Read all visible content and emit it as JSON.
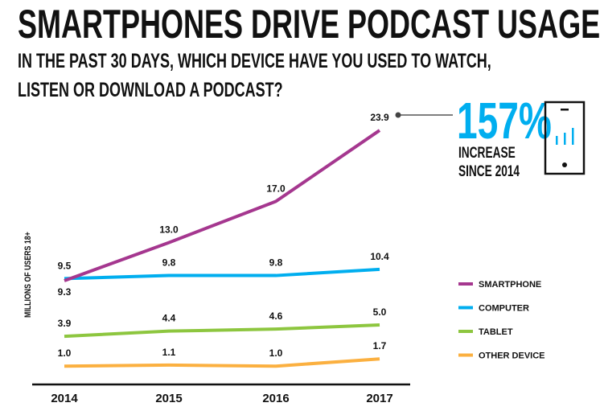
{
  "header": {
    "title": "SMARTPHONES DRIVE PODCAST USAGE",
    "subtitle_line1": "IN THE PAST 30 DAYS, WHICH DEVICE HAVE YOU USED TO WATCH,",
    "subtitle_line2": "LISTEN OR DOWNLOAD A PODCAST?"
  },
  "callout": {
    "value": "157%",
    "line1": "INCREASE",
    "line2": "SINCE 2014",
    "icon": "smartphone-signal-icon",
    "color": "#00aeef"
  },
  "chart_data": {
    "type": "line",
    "categories": [
      "2014",
      "2015",
      "2016",
      "2017"
    ],
    "ylabel": "MILLIONS OF USERS 18+",
    "legend_position": "right",
    "grid": false,
    "series": [
      {
        "name": "SMARTPHONE",
        "color": "#a5378f",
        "values": [
          9.3,
          13.0,
          17.0,
          23.9
        ],
        "labels": [
          "9.3",
          "13.0",
          "17.0",
          "23.9"
        ]
      },
      {
        "name": "COMPUTER",
        "color": "#00aeef",
        "values": [
          9.5,
          9.8,
          9.8,
          10.4
        ],
        "labels": [
          "9.5",
          "9.8",
          "9.8",
          "10.4"
        ]
      },
      {
        "name": "TABLET",
        "color": "#8dc63f",
        "values": [
          3.9,
          4.4,
          4.6,
          5.0
        ],
        "labels": [
          "3.9",
          "4.4",
          "4.6",
          "5.0"
        ]
      },
      {
        "name": "OTHER DEVICE",
        "color": "#fbb040",
        "values": [
          1.0,
          1.1,
          1.0,
          1.7
        ],
        "labels": [
          "1.0",
          "1.1",
          "1.0",
          "1.7"
        ]
      }
    ]
  }
}
